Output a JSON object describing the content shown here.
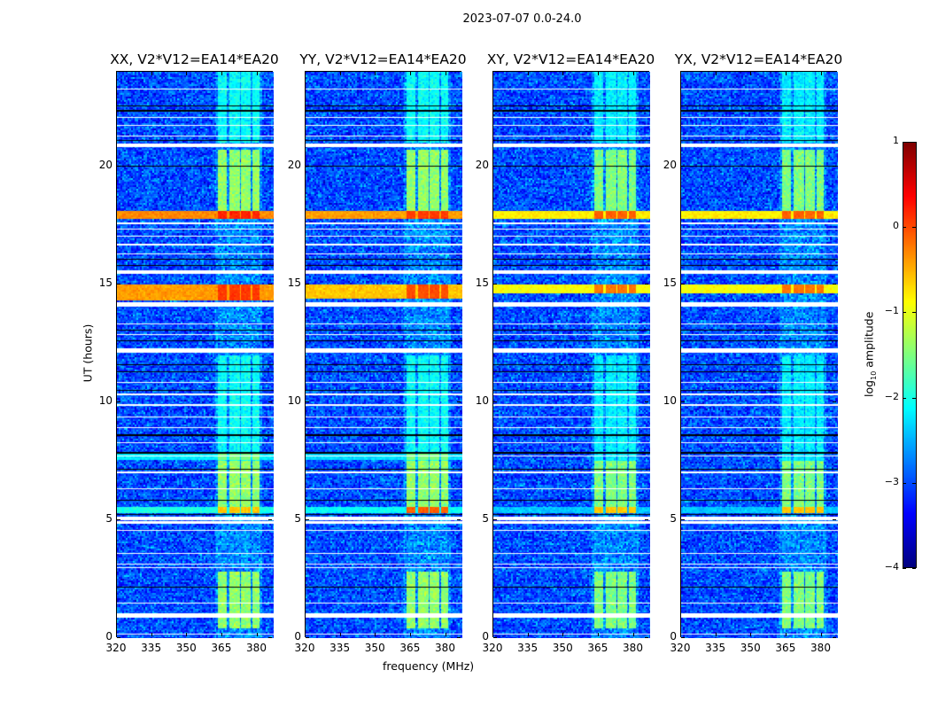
{
  "chart_data": {
    "type": "heatmap",
    "title": "2023-07-07 0.0-24.0",
    "xlabel": "frequency (MHz)",
    "ylabel": "UT (hours)",
    "xlim": [
      320,
      387
    ],
    "ylim": [
      0,
      24
    ],
    "xticks": [
      320,
      335,
      350,
      365,
      380
    ],
    "yticks": [
      0,
      5,
      10,
      15,
      20
    ],
    "colorbar": {
      "label_main": "log",
      "label_sub": "10",
      "label_rest": " amplitude",
      "range": [
        -4,
        1
      ],
      "ticks": [
        1,
        0,
        -1,
        -2,
        -3,
        -4
      ],
      "tick_labels": [
        "1",
        "0",
        "−1",
        "−2",
        "−3",
        "−4"
      ],
      "colormap": "jet"
    },
    "background_level": -3.0,
    "rfi_channels_mhz": [
      [
        363,
        367
      ],
      [
        368,
        372.5
      ],
      [
        373,
        377
      ],
      [
        378,
        381
      ]
    ],
    "rfi_time_windows_hours": [
      [
        0.4,
        2.8
      ],
      [
        5.3,
        8.0
      ],
      [
        8.0,
        12.0
      ],
      [
        18.0,
        20.7
      ],
      [
        21.0,
        24.0
      ]
    ],
    "flagged_rows_hours": [
      [
        0.15,
        0.2
      ],
      [
        0.85,
        1.07
      ],
      [
        1.45,
        1.5
      ],
      [
        2.95,
        3.0
      ],
      [
        3.1,
        3.15
      ],
      [
        3.55,
        3.6
      ],
      [
        4.55,
        4.6
      ],
      [
        4.85,
        4.95
      ],
      [
        5.0,
        5.15
      ],
      [
        6.3,
        6.35
      ],
      [
        7.0,
        7.05
      ],
      [
        7.7,
        7.75
      ],
      [
        8.25,
        8.3
      ],
      [
        8.9,
        8.95
      ],
      [
        9.35,
        9.4
      ],
      [
        9.85,
        9.9
      ],
      [
        10.3,
        10.35
      ],
      [
        10.8,
        10.85
      ],
      [
        12.1,
        12.3
      ],
      [
        12.85,
        12.9
      ],
      [
        13.3,
        13.35
      ],
      [
        14.05,
        14.25
      ],
      [
        15.45,
        15.6
      ],
      [
        16.25,
        16.3
      ],
      [
        16.65,
        16.7
      ],
      [
        17.0,
        17.05
      ],
      [
        17.3,
        17.35
      ],
      [
        17.55,
        17.6
      ],
      [
        20.8,
        20.95
      ],
      [
        21.25,
        21.3
      ],
      [
        21.7,
        21.75
      ],
      [
        22.05,
        22.1
      ],
      [
        23.25,
        23.3
      ]
    ],
    "blank_rows_hours": [
      2.15,
      5.25,
      5.85,
      7.15,
      7.85,
      8.6,
      10.5,
      11.3,
      11.6,
      12.6,
      13.05,
      15.8,
      16.05,
      20.0,
      21.1,
      22.35,
      22.55
    ],
    "panels": [
      {
        "title": "XX, V2*V12=EA14*EA20",
        "rfi_level": -1.4,
        "broadband_rows": [
          {
            "hours": [
              17.75,
              18.1
            ],
            "level": -0.3,
            "rfi_level": 0.2
          },
          {
            "hours": [
              14.3,
              15.0
            ],
            "level": -0.4,
            "rfi_level": 0.1
          },
          {
            "hours": [
              5.3,
              5.55
            ],
            "level": -2.0,
            "rfi_level": -0.6
          },
          {
            "hours": [
              7.55,
              7.85
            ],
            "level": -2.2,
            "rfi_level": -1.5
          }
        ]
      },
      {
        "title": "YY, V2*V12=EA14*EA20",
        "rfi_level": -1.4,
        "broadband_rows": [
          {
            "hours": [
              17.75,
              18.1
            ],
            "level": -0.4,
            "rfi_level": 0.1
          },
          {
            "hours": [
              14.4,
              15.0
            ],
            "level": -0.6,
            "rfi_level": 0.0
          },
          {
            "hours": [
              5.3,
              5.55
            ],
            "level": -2.1,
            "rfi_level": -0.1
          },
          {
            "hours": [
              7.55,
              7.85
            ],
            "level": -2.3,
            "rfi_level": -1.5
          }
        ]
      },
      {
        "title": "XY, V2*V12=EA14*EA20",
        "rfi_level": -1.5,
        "broadband_rows": [
          {
            "hours": [
              17.75,
              18.1
            ],
            "level": -0.8,
            "rfi_level": -0.1
          },
          {
            "hours": [
              14.6,
              15.0
            ],
            "level": -0.9,
            "rfi_level": -0.2
          },
          {
            "hours": [
              5.3,
              5.55
            ],
            "level": -2.4,
            "rfi_level": -0.6
          }
        ]
      },
      {
        "title": "YX, V2*V12=EA14*EA20",
        "rfi_level": -1.5,
        "broadband_rows": [
          {
            "hours": [
              17.75,
              18.1
            ],
            "level": -0.8,
            "rfi_level": -0.1
          },
          {
            "hours": [
              14.6,
              15.0
            ],
            "level": -0.9,
            "rfi_level": -0.2
          },
          {
            "hours": [
              5.3,
              5.55
            ],
            "level": -2.4,
            "rfi_level": -0.6
          }
        ]
      }
    ]
  }
}
